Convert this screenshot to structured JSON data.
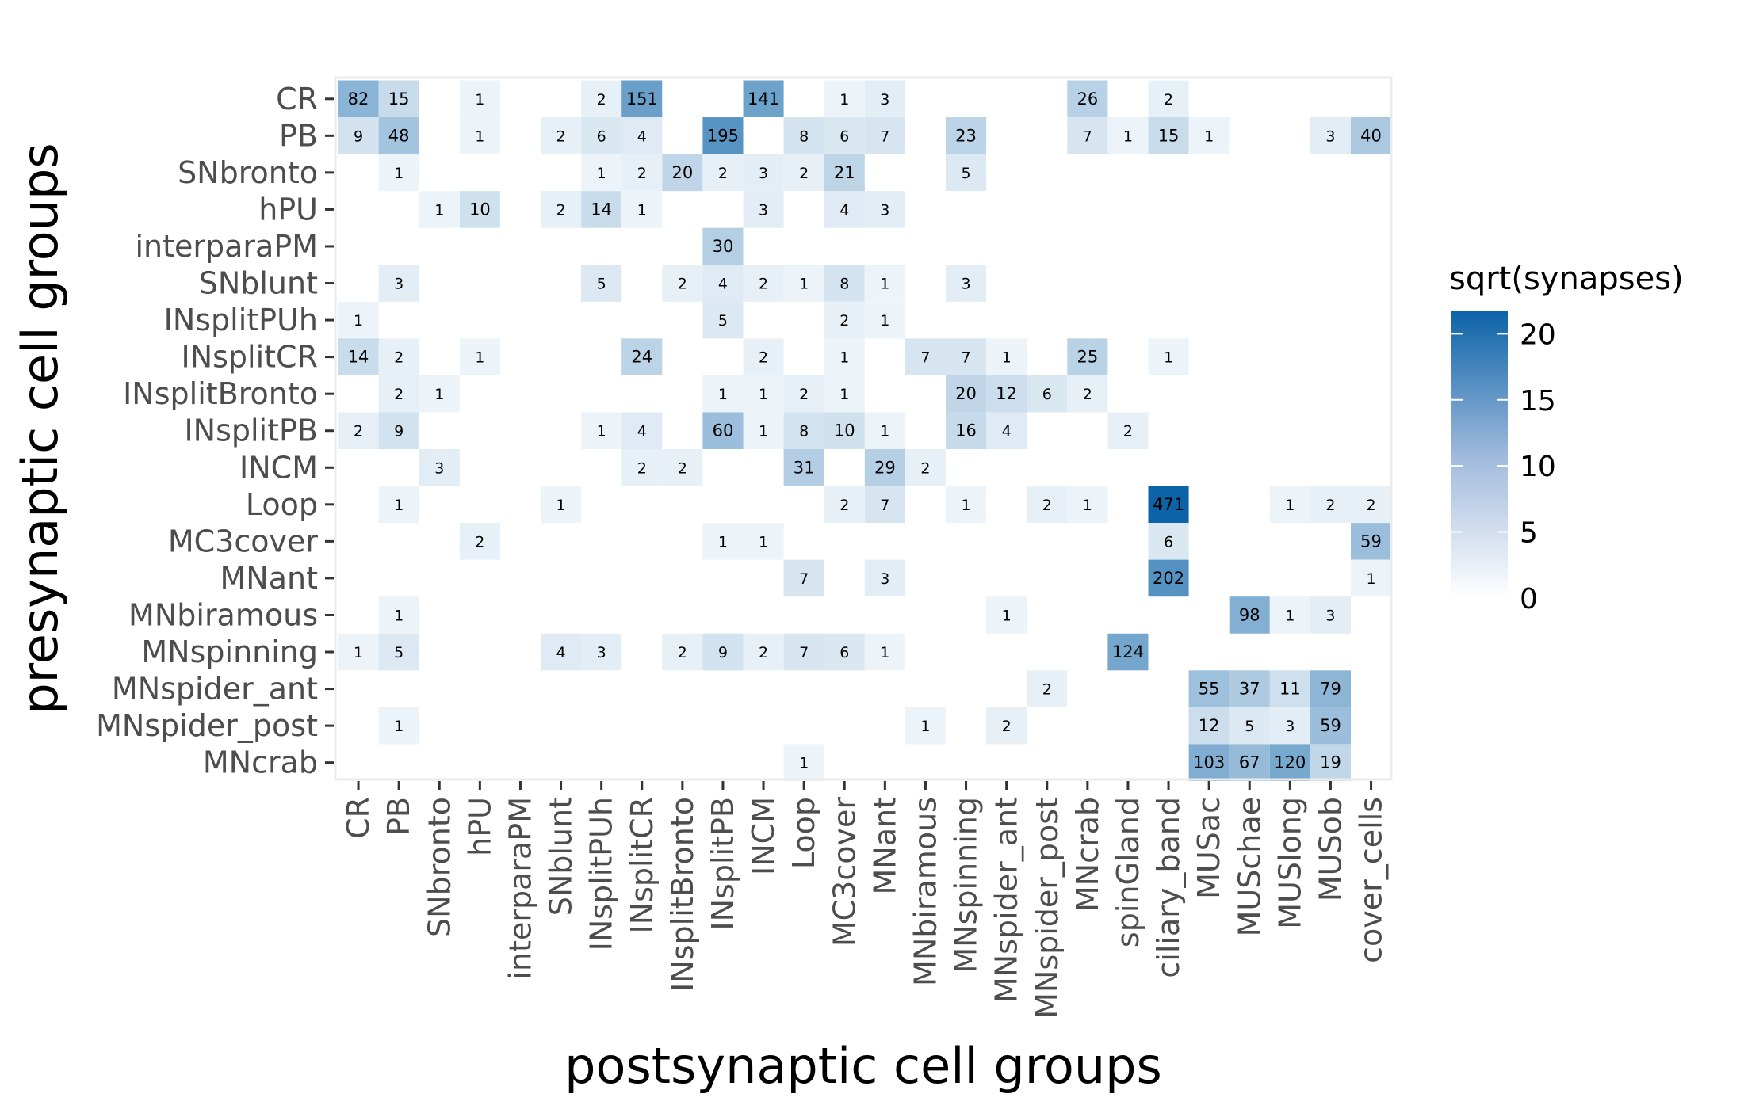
{
  "chart_data": {
    "type": "heatmap",
    "xlabel": "postsynaptic cell groups",
    "ylabel": "presynaptic cell groups",
    "x_categories": [
      "CR",
      "PB",
      "SNbronto",
      "hPU",
      "interparaPM",
      "SNblunt",
      "INsplitPUh",
      "INsplitCR",
      "INsplitBronto",
      "INsplitPB",
      "INCM",
      "Loop",
      "MC3cover",
      "MNant",
      "MNbiramous",
      "MNspinning",
      "MNspider_ant",
      "MNspider_post",
      "MNcrab",
      "spinGland",
      "ciliary_band",
      "MUSac",
      "MUSchae",
      "MUSlong",
      "MUSob",
      "cover_cells"
    ],
    "y_categories": [
      "CR",
      "PB",
      "SNbronto",
      "hPU",
      "interparaPM",
      "SNblunt",
      "INsplitPUh",
      "INsplitCR",
      "INsplitBronto",
      "INsplitPB",
      "INCM",
      "Loop",
      "MC3cover",
      "MNant",
      "MNbiramous",
      "MNspinning",
      "MNspider_ant",
      "MNspider_post",
      "MNcrab"
    ],
    "cells": [
      [
        "CR",
        "CR",
        82
      ],
      [
        "CR",
        "PB",
        15
      ],
      [
        "CR",
        "hPU",
        1
      ],
      [
        "CR",
        "INsplitPUh",
        2
      ],
      [
        "CR",
        "INsplitCR",
        151
      ],
      [
        "CR",
        "INCM",
        141
      ],
      [
        "CR",
        "MC3cover",
        1
      ],
      [
        "CR",
        "MNant",
        3
      ],
      [
        "CR",
        "MNcrab",
        26
      ],
      [
        "CR",
        "ciliary_band",
        2
      ],
      [
        "PB",
        "CR",
        9
      ],
      [
        "PB",
        "PB",
        48
      ],
      [
        "PB",
        "hPU",
        1
      ],
      [
        "PB",
        "SNblunt",
        2
      ],
      [
        "PB",
        "INsplitPUh",
        6
      ],
      [
        "PB",
        "INsplitCR",
        4
      ],
      [
        "PB",
        "INsplitPB",
        195
      ],
      [
        "PB",
        "Loop",
        8
      ],
      [
        "PB",
        "MC3cover",
        6
      ],
      [
        "PB",
        "MNant",
        7
      ],
      [
        "PB",
        "MNspinning",
        23
      ],
      [
        "PB",
        "MNcrab",
        7
      ],
      [
        "PB",
        "spinGland",
        1
      ],
      [
        "PB",
        "ciliary_band",
        15
      ],
      [
        "PB",
        "MUSac",
        1
      ],
      [
        "PB",
        "MUSob",
        3
      ],
      [
        "PB",
        "cover_cells",
        40
      ],
      [
        "SNbronto",
        "PB",
        1
      ],
      [
        "SNbronto",
        "INsplitPUh",
        1
      ],
      [
        "SNbronto",
        "INsplitCR",
        2
      ],
      [
        "SNbronto",
        "INsplitBronto",
        20
      ],
      [
        "SNbronto",
        "INsplitPB",
        2
      ],
      [
        "SNbronto",
        "INCM",
        3
      ],
      [
        "SNbronto",
        "Loop",
        2
      ],
      [
        "SNbronto",
        "MC3cover",
        21
      ],
      [
        "SNbronto",
        "MNspinning",
        5
      ],
      [
        "hPU",
        "SNbronto",
        1
      ],
      [
        "hPU",
        "hPU",
        10
      ],
      [
        "hPU",
        "SNblunt",
        2
      ],
      [
        "hPU",
        "INsplitPUh",
        14
      ],
      [
        "hPU",
        "INsplitCR",
        1
      ],
      [
        "hPU",
        "INCM",
        3
      ],
      [
        "hPU",
        "MC3cover",
        4
      ],
      [
        "hPU",
        "MNant",
        3
      ],
      [
        "interparaPM",
        "INsplitPB",
        30
      ],
      [
        "SNblunt",
        "PB",
        3
      ],
      [
        "SNblunt",
        "INsplitPUh",
        5
      ],
      [
        "SNblunt",
        "INsplitBronto",
        2
      ],
      [
        "SNblunt",
        "INsplitPB",
        4
      ],
      [
        "SNblunt",
        "INCM",
        2
      ],
      [
        "SNblunt",
        "Loop",
        1
      ],
      [
        "SNblunt",
        "MC3cover",
        8
      ],
      [
        "SNblunt",
        "MNant",
        1
      ],
      [
        "SNblunt",
        "MNspinning",
        3
      ],
      [
        "INsplitPUh",
        "CR",
        1
      ],
      [
        "INsplitPUh",
        "INsplitPB",
        5
      ],
      [
        "INsplitPUh",
        "MC3cover",
        2
      ],
      [
        "INsplitPUh",
        "MNant",
        1
      ],
      [
        "INsplitCR",
        "CR",
        14
      ],
      [
        "INsplitCR",
        "PB",
        2
      ],
      [
        "INsplitCR",
        "hPU",
        1
      ],
      [
        "INsplitCR",
        "INsplitCR",
        24
      ],
      [
        "INsplitCR",
        "INCM",
        2
      ],
      [
        "INsplitCR",
        "MC3cover",
        1
      ],
      [
        "INsplitCR",
        "MNbiramous",
        7
      ],
      [
        "INsplitCR",
        "MNspinning",
        7
      ],
      [
        "INsplitCR",
        "MNspider_ant",
        1
      ],
      [
        "INsplitCR",
        "MNcrab",
        25
      ],
      [
        "INsplitCR",
        "ciliary_band",
        1
      ],
      [
        "INsplitBronto",
        "PB",
        2
      ],
      [
        "INsplitBronto",
        "SNbronto",
        1
      ],
      [
        "INsplitBronto",
        "INsplitPB",
        1
      ],
      [
        "INsplitBronto",
        "INCM",
        1
      ],
      [
        "INsplitBronto",
        "Loop",
        2
      ],
      [
        "INsplitBronto",
        "MC3cover",
        1
      ],
      [
        "INsplitBronto",
        "MNspinning",
        20
      ],
      [
        "INsplitBronto",
        "MNspider_ant",
        12
      ],
      [
        "INsplitBronto",
        "MNspider_post",
        6
      ],
      [
        "INsplitBronto",
        "MNcrab",
        2
      ],
      [
        "INsplitPB",
        "CR",
        2
      ],
      [
        "INsplitPB",
        "PB",
        9
      ],
      [
        "INsplitPB",
        "INsplitPUh",
        1
      ],
      [
        "INsplitPB",
        "INsplitCR",
        4
      ],
      [
        "INsplitPB",
        "INsplitPB",
        60
      ],
      [
        "INsplitPB",
        "INCM",
        1
      ],
      [
        "INsplitPB",
        "Loop",
        8
      ],
      [
        "INsplitPB",
        "MC3cover",
        10
      ],
      [
        "INsplitPB",
        "MNant",
        1
      ],
      [
        "INsplitPB",
        "MNspinning",
        16
      ],
      [
        "INsplitPB",
        "MNspider_ant",
        4
      ],
      [
        "INsplitPB",
        "spinGland",
        2
      ],
      [
        "INCM",
        "SNbronto",
        3
      ],
      [
        "INCM",
        "INsplitCR",
        2
      ],
      [
        "INCM",
        "INsplitBronto",
        2
      ],
      [
        "INCM",
        "Loop",
        31
      ],
      [
        "INCM",
        "MNant",
        29
      ],
      [
        "INCM",
        "MNbiramous",
        2
      ],
      [
        "Loop",
        "PB",
        1
      ],
      [
        "Loop",
        "SNblunt",
        1
      ],
      [
        "Loop",
        "MC3cover",
        2
      ],
      [
        "Loop",
        "MNant",
        7
      ],
      [
        "Loop",
        "MNspinning",
        1
      ],
      [
        "Loop",
        "MNspider_post",
        2
      ],
      [
        "Loop",
        "MNcrab",
        1
      ],
      [
        "Loop",
        "ciliary_band",
        471
      ],
      [
        "Loop",
        "MUSlong",
        1
      ],
      [
        "Loop",
        "MUSob",
        2
      ],
      [
        "Loop",
        "cover_cells",
        2
      ],
      [
        "MC3cover",
        "hPU",
        2
      ],
      [
        "MC3cover",
        "INsplitPB",
        1
      ],
      [
        "MC3cover",
        "INCM",
        1
      ],
      [
        "MC3cover",
        "ciliary_band",
        6
      ],
      [
        "MC3cover",
        "cover_cells",
        59
      ],
      [
        "MNant",
        "Loop",
        7
      ],
      [
        "MNant",
        "MNant",
        3
      ],
      [
        "MNant",
        "ciliary_band",
        202
      ],
      [
        "MNant",
        "cover_cells",
        1
      ],
      [
        "MNbiramous",
        "PB",
        1
      ],
      [
        "MNbiramous",
        "MNspider_ant",
        1
      ],
      [
        "MNbiramous",
        "MUSchae",
        98
      ],
      [
        "MNbiramous",
        "MUSlong",
        1
      ],
      [
        "MNbiramous",
        "MUSob",
        3
      ],
      [
        "MNspinning",
        "CR",
        1
      ],
      [
        "MNspinning",
        "PB",
        5
      ],
      [
        "MNspinning",
        "SNblunt",
        4
      ],
      [
        "MNspinning",
        "INsplitPUh",
        3
      ],
      [
        "MNspinning",
        "INsplitBronto",
        2
      ],
      [
        "MNspinning",
        "INsplitPB",
        9
      ],
      [
        "MNspinning",
        "INCM",
        2
      ],
      [
        "MNspinning",
        "Loop",
        7
      ],
      [
        "MNspinning",
        "MC3cover",
        6
      ],
      [
        "MNspinning",
        "MNant",
        1
      ],
      [
        "MNspinning",
        "spinGland",
        124
      ],
      [
        "MNspider_ant",
        "MNspider_post",
        2
      ],
      [
        "MNspider_ant",
        "MUSac",
        55
      ],
      [
        "MNspider_ant",
        "MUSchae",
        37
      ],
      [
        "MNspider_ant",
        "MUSlong",
        11
      ],
      [
        "MNspider_ant",
        "MUSob",
        79
      ],
      [
        "MNspider_post",
        "PB",
        1
      ],
      [
        "MNspider_post",
        "MNbiramous",
        1
      ],
      [
        "MNspider_post",
        "MNspider_ant",
        2
      ],
      [
        "MNspider_post",
        "MUSac",
        12
      ],
      [
        "MNspider_post",
        "MUSchae",
        5
      ],
      [
        "MNspider_post",
        "MUSlong",
        3
      ],
      [
        "MNspider_post",
        "MUSob",
        59
      ],
      [
        "MNcrab",
        "Loop",
        1
      ],
      [
        "MNcrab",
        "MUSac",
        103
      ],
      [
        "MNcrab",
        "MUSchae",
        67
      ],
      [
        "MNcrab",
        "MUSlong",
        120
      ],
      [
        "MNcrab",
        "MUSob",
        19
      ]
    ],
    "color_scale": {
      "title": "sqrt(synapses)",
      "low_color": "#ffffff",
      "high_color": "#0c63a8",
      "limits": [
        0,
        21.7
      ],
      "breaks": [
        0,
        5,
        10,
        15,
        20
      ]
    },
    "panel_border_color": "#ebebeb",
    "legend_position": "right"
  }
}
